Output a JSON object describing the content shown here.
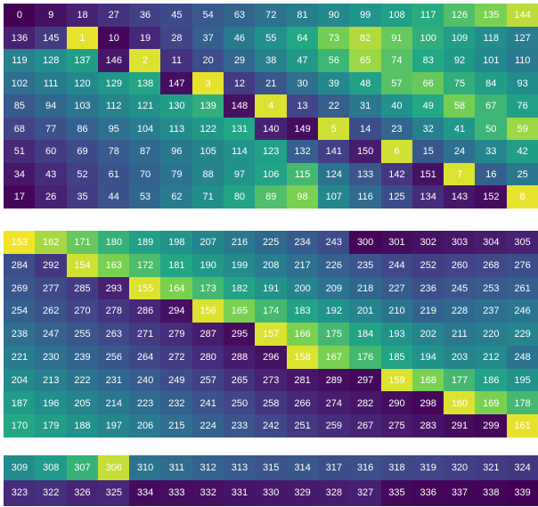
{
  "chart_data": {
    "type": "heatmap",
    "colormap": "viridis",
    "blocks": [
      {
        "rows": [
          [
            0,
            9,
            18,
            27,
            36,
            45,
            54,
            63,
            72,
            81,
            90,
            99,
            108,
            117,
            126,
            135,
            144
          ],
          [
            136,
            145,
            1,
            10,
            19,
            28,
            37,
            46,
            55,
            64,
            73,
            82,
            91,
            100,
            109,
            118,
            127
          ],
          [
            119,
            128,
            137,
            146,
            2,
            11,
            20,
            29,
            38,
            47,
            56,
            65,
            74,
            83,
            92,
            101,
            110
          ],
          [
            102,
            111,
            120,
            129,
            138,
            147,
            3,
            12,
            21,
            30,
            39,
            48,
            57,
            66,
            75,
            84,
            93
          ],
          [
            85,
            94,
            103,
            112,
            121,
            130,
            139,
            148,
            4,
            13,
            22,
            31,
            40,
            49,
            58,
            67,
            76
          ],
          [
            68,
            77,
            86,
            95,
            104,
            113,
            122,
            131,
            140,
            149,
            5,
            14,
            23,
            32,
            41,
            50,
            59
          ],
          [
            51,
            60,
            69,
            78,
            87,
            96,
            105,
            114,
            123,
            132,
            141,
            150,
            6,
            15,
            24,
            33,
            42
          ],
          [
            34,
            43,
            52,
            61,
            70,
            79,
            88,
            97,
            106,
            115,
            124,
            133,
            142,
            151,
            7,
            16,
            25
          ],
          [
            17,
            26,
            35,
            44,
            53,
            62,
            71,
            80,
            89,
            98,
            107,
            116,
            125,
            134,
            143,
            152,
            8
          ]
        ],
        "colors": [
          [
            0.0,
            0.06,
            0.12,
            0.18,
            0.24,
            0.29,
            0.35,
            0.41,
            0.47,
            0.53,
            0.59,
            0.65,
            0.71,
            0.76,
            0.82,
            0.88,
            0.94
          ],
          [
            0.12,
            0.22,
            0.98,
            0.02,
            0.14,
            0.26,
            0.38,
            0.51,
            0.63,
            0.75,
            0.87,
            0.93,
            0.85,
            0.77,
            0.69,
            0.61,
            0.53
          ],
          [
            0.55,
            0.62,
            0.69,
            0.08,
            0.97,
            0.18,
            0.3,
            0.42,
            0.55,
            0.67,
            0.79,
            0.91,
            0.83,
            0.75,
            0.67,
            0.59,
            0.51
          ],
          [
            0.45,
            0.52,
            0.59,
            0.66,
            0.73,
            0.05,
            0.98,
            0.22,
            0.34,
            0.46,
            0.59,
            0.71,
            0.83,
            0.85,
            0.77,
            0.69,
            0.61
          ],
          [
            0.35,
            0.42,
            0.49,
            0.56,
            0.63,
            0.7,
            0.77,
            0.06,
            0.97,
            0.26,
            0.38,
            0.5,
            0.63,
            0.75,
            0.87,
            0.79,
            0.71
          ],
          [
            0.25,
            0.32,
            0.39,
            0.46,
            0.53,
            0.6,
            0.67,
            0.74,
            0.12,
            0.04,
            0.96,
            0.3,
            0.42,
            0.54,
            0.66,
            0.79,
            0.91
          ],
          [
            0.15,
            0.22,
            0.29,
            0.36,
            0.43,
            0.5,
            0.57,
            0.64,
            0.71,
            0.38,
            0.24,
            0.1,
            0.96,
            0.34,
            0.46,
            0.58,
            0.7
          ],
          [
            0.08,
            0.16,
            0.24,
            0.32,
            0.4,
            0.48,
            0.56,
            0.64,
            0.72,
            0.8,
            0.48,
            0.34,
            0.2,
            0.06,
            0.97,
            0.38,
            0.5
          ],
          [
            0.02,
            0.12,
            0.22,
            0.32,
            0.42,
            0.52,
            0.62,
            0.72,
            0.82,
            0.88,
            0.58,
            0.44,
            0.3,
            0.16,
            0.08,
            0.04,
            0.98
          ]
        ]
      },
      {
        "rows": [
          [
            153,
            162,
            171,
            180,
            189,
            198,
            207,
            216,
            225,
            234,
            243,
            300,
            301,
            302,
            303,
            304,
            305
          ],
          [
            284,
            292,
            154,
            163,
            172,
            181,
            190,
            199,
            208,
            217,
            226,
            235,
            244,
            252,
            260,
            268,
            276
          ],
          [
            269,
            277,
            285,
            293,
            155,
            164,
            173,
            182,
            191,
            200,
            209,
            218,
            227,
            236,
            245,
            253,
            261
          ],
          [
            254,
            262,
            270,
            278,
            286,
            294,
            156,
            165,
            174,
            183,
            192,
            201,
            210,
            219,
            228,
            237,
            246
          ],
          [
            238,
            247,
            255,
            263,
            271,
            279,
            287,
            295,
            157,
            166,
            175,
            184,
            193,
            202,
            211,
            220,
            229
          ],
          [
            221,
            230,
            239,
            256,
            264,
            272,
            280,
            288,
            296,
            158,
            167,
            176,
            185,
            194,
            203,
            212,
            248
          ],
          [
            204,
            213,
            222,
            231,
            240,
            249,
            257,
            265,
            273,
            281,
            289,
            297,
            159,
            168,
            177,
            186,
            195
          ],
          [
            187,
            196,
            205,
            214,
            223,
            232,
            241,
            250,
            258,
            266,
            274,
            282,
            290,
            298,
            160,
            169,
            178
          ],
          [
            170,
            179,
            188,
            197,
            206,
            215,
            224,
            233,
            242,
            251,
            259,
            267,
            275,
            283,
            291,
            299,
            161
          ]
        ],
        "colors": [
          [
            0.99,
            0.92,
            0.85,
            0.78,
            0.71,
            0.64,
            0.57,
            0.5,
            0.43,
            0.36,
            0.29,
            0.02,
            0.04,
            0.06,
            0.08,
            0.1,
            0.12
          ],
          [
            0.3,
            0.2,
            0.96,
            0.88,
            0.81,
            0.74,
            0.67,
            0.6,
            0.53,
            0.46,
            0.39,
            0.33,
            0.27,
            0.23,
            0.25,
            0.27,
            0.3
          ],
          [
            0.34,
            0.28,
            0.22,
            0.12,
            0.97,
            0.88,
            0.8,
            0.72,
            0.64,
            0.56,
            0.48,
            0.42,
            0.36,
            0.31,
            0.34,
            0.36,
            0.38
          ],
          [
            0.38,
            0.32,
            0.26,
            0.2,
            0.14,
            0.06,
            0.97,
            0.88,
            0.8,
            0.72,
            0.64,
            0.56,
            0.48,
            0.4,
            0.43,
            0.46,
            0.49
          ],
          [
            0.45,
            0.4,
            0.34,
            0.28,
            0.22,
            0.16,
            0.1,
            0.04,
            0.97,
            0.88,
            0.8,
            0.72,
            0.64,
            0.56,
            0.5,
            0.53,
            0.56
          ],
          [
            0.52,
            0.46,
            0.4,
            0.34,
            0.28,
            0.22,
            0.16,
            0.1,
            0.06,
            0.97,
            0.88,
            0.8,
            0.72,
            0.64,
            0.57,
            0.6,
            0.48
          ],
          [
            0.6,
            0.54,
            0.48,
            0.42,
            0.36,
            0.3,
            0.24,
            0.18,
            0.12,
            0.08,
            0.05,
            0.03,
            0.97,
            0.88,
            0.8,
            0.72,
            0.64
          ],
          [
            0.68,
            0.62,
            0.56,
            0.5,
            0.44,
            0.38,
            0.32,
            0.26,
            0.2,
            0.14,
            0.1,
            0.08,
            0.05,
            0.02,
            0.97,
            0.88,
            0.8
          ],
          [
            0.75,
            0.69,
            0.63,
            0.57,
            0.51,
            0.45,
            0.39,
            0.33,
            0.27,
            0.21,
            0.16,
            0.13,
            0.1,
            0.07,
            0.04,
            0.02,
            0.98
          ]
        ]
      },
      {
        "rows": [
          [
            309,
            308,
            307,
            306,
            310,
            311,
            312,
            313,
            315,
            314,
            317,
            316,
            318,
            319,
            320,
            321,
            324
          ],
          [
            323,
            322,
            326,
            325,
            334,
            333,
            332,
            331,
            330,
            329,
            328,
            327,
            335,
            336,
            337,
            338,
            339
          ]
        ],
        "colors": [
          [
            0.6,
            0.68,
            0.78,
            0.95,
            0.48,
            0.44,
            0.4,
            0.36,
            0.33,
            0.34,
            0.3,
            0.31,
            0.28,
            0.26,
            0.24,
            0.22,
            0.2
          ],
          [
            0.16,
            0.17,
            0.13,
            0.14,
            0.04,
            0.05,
            0.06,
            0.07,
            0.08,
            0.09,
            0.1,
            0.11,
            0.03,
            0.02,
            0.01,
            0.01,
            0.0
          ]
        ]
      }
    ]
  }
}
